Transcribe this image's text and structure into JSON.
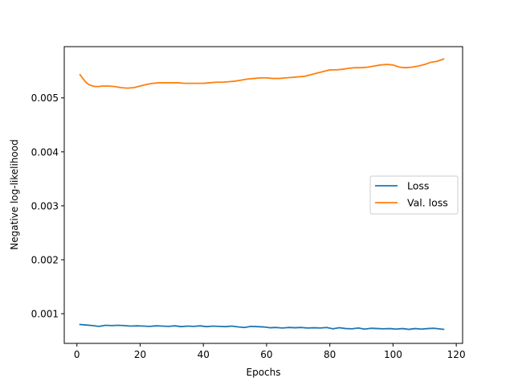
{
  "chart_data": {
    "type": "line",
    "title": "",
    "xlabel": "Epochs",
    "ylabel": "Negative log-likelihood",
    "xlim": [
      -4,
      122
    ],
    "ylim": [
      0.00045,
      0.00595
    ],
    "xticks": [
      0,
      20,
      40,
      60,
      80,
      100,
      120
    ],
    "xtick_labels": [
      "0",
      "20",
      "40",
      "60",
      "80",
      "100",
      "120"
    ],
    "yticks": [
      0.001,
      0.002,
      0.003,
      0.004,
      0.005
    ],
    "ytick_labels": [
      "0.001",
      "0.002",
      "0.003",
      "0.004",
      "0.005"
    ],
    "grid": false,
    "legend_position": "center-right",
    "series": [
      {
        "name": "Loss",
        "color": "#1f77b4",
        "x": [
          1,
          3,
          5,
          7,
          9,
          11,
          13,
          15,
          17,
          19,
          21,
          23,
          25,
          27,
          29,
          31,
          33,
          35,
          37,
          39,
          41,
          43,
          45,
          47,
          49,
          51,
          53,
          55,
          57,
          59,
          61,
          63,
          65,
          67,
          69,
          71,
          73,
          75,
          77,
          79,
          81,
          83,
          85,
          87,
          89,
          91,
          93,
          95,
          97,
          99,
          101,
          103,
          105,
          107,
          109,
          111,
          113,
          116
        ],
        "y": [
          0.0008,
          0.00079,
          0.00078,
          0.000765,
          0.000785,
          0.00078,
          0.000785,
          0.00078,
          0.00077,
          0.000775,
          0.00077,
          0.000765,
          0.000775,
          0.00077,
          0.000765,
          0.000775,
          0.00076,
          0.00077,
          0.000765,
          0.000775,
          0.00076,
          0.00077,
          0.000765,
          0.00076,
          0.00077,
          0.000755,
          0.000745,
          0.000765,
          0.00076,
          0.000755,
          0.00074,
          0.000745,
          0.000735,
          0.000745,
          0.00074,
          0.000745,
          0.000735,
          0.00074,
          0.000735,
          0.000745,
          0.00072,
          0.00074,
          0.000725,
          0.00072,
          0.000735,
          0.000715,
          0.00073,
          0.000725,
          0.00072,
          0.000725,
          0.000715,
          0.000725,
          0.00071,
          0.000725,
          0.000715,
          0.000725,
          0.00073,
          0.00071
        ]
      },
      {
        "name": "Val. loss",
        "color": "#ff7f0e",
        "x": [
          1,
          2,
          3,
          4,
          5,
          6,
          7,
          8,
          10,
          12,
          14,
          16,
          18,
          20,
          22,
          24,
          26,
          28,
          30,
          32,
          34,
          36,
          38,
          40,
          42,
          44,
          46,
          48,
          50,
          52,
          54,
          56,
          58,
          60,
          62,
          64,
          66,
          68,
          70,
          72,
          74,
          76,
          78,
          80,
          82,
          84,
          86,
          88,
          90,
          92,
          94,
          96,
          98,
          100,
          102,
          104,
          106,
          108,
          110,
          112,
          114,
          116
        ],
        "y": [
          0.00543,
          0.00535,
          0.00528,
          0.00524,
          0.00522,
          0.00521,
          0.00521,
          0.00522,
          0.00522,
          0.00521,
          0.00519,
          0.00518,
          0.00519,
          0.00522,
          0.00525,
          0.00527,
          0.00528,
          0.00528,
          0.00528,
          0.00528,
          0.00527,
          0.00527,
          0.00527,
          0.00527,
          0.00528,
          0.00529,
          0.00529,
          0.0053,
          0.00531,
          0.00533,
          0.00535,
          0.00536,
          0.00537,
          0.00537,
          0.00536,
          0.00536,
          0.00537,
          0.00538,
          0.00539,
          0.0054,
          0.00543,
          0.00546,
          0.00549,
          0.00552,
          0.00552,
          0.00553,
          0.00555,
          0.00556,
          0.00556,
          0.00557,
          0.00559,
          0.00561,
          0.00562,
          0.00561,
          0.00557,
          0.00556,
          0.00557,
          0.00559,
          0.00562,
          0.00566,
          0.00568,
          0.00572
        ]
      }
    ]
  }
}
